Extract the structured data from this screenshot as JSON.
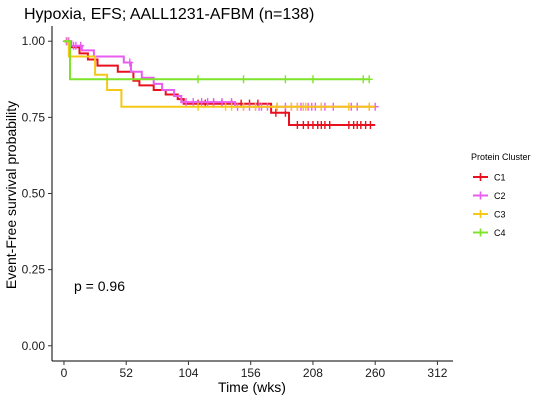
{
  "chart_data": {
    "type": "line",
    "subtype": "kaplan-meier",
    "title": "Hypoxia,  EFS; AALL1231-AFBM (n=138)",
    "xlabel": "Time (wks)",
    "ylabel": "Event-Free survival probability",
    "xlim": [
      -10,
      325
    ],
    "ylim": [
      -0.05,
      1.05
    ],
    "x_ticks": [
      0,
      52,
      104,
      156,
      208,
      260,
      312
    ],
    "x_tick_labels": [
      "0",
      "52",
      "104",
      "156",
      "208",
      "260",
      "312"
    ],
    "y_ticks": [
      0,
      0.25,
      0.5,
      0.75,
      1.0
    ],
    "y_tick_labels": [
      "0.00",
      "0.25",
      "0.50",
      "0.75",
      "1.00"
    ],
    "grid": false,
    "legend": {
      "title": "Protein Cluster",
      "position": "right"
    },
    "annotation": "p = 0.96",
    "series": [
      {
        "name": "C1",
        "color": "#e8101e",
        "steps": [
          [
            0,
            1.0
          ],
          [
            5,
            0.98
          ],
          [
            13,
            0.96
          ],
          [
            20,
            0.94
          ],
          [
            28,
            0.92
          ],
          [
            45,
            0.9
          ],
          [
            58,
            0.87
          ],
          [
            63,
            0.855
          ],
          [
            75,
            0.84
          ],
          [
            85,
            0.825
          ],
          [
            95,
            0.81
          ],
          [
            100,
            0.795
          ],
          [
            173,
            0.765
          ],
          [
            188,
            0.725
          ],
          [
            260,
            0.725
          ]
        ],
        "censor_x": [
          98,
          112,
          118,
          125,
          132,
          140,
          148,
          155,
          162,
          177,
          185,
          195,
          200,
          204,
          208,
          212,
          215,
          218,
          222,
          238,
          242,
          245,
          248,
          252,
          256
        ]
      },
      {
        "name": "C2",
        "color": "#e85cf0",
        "steps": [
          [
            0,
            1.0
          ],
          [
            6,
            0.985
          ],
          [
            15,
            0.97
          ],
          [
            25,
            0.95
          ],
          [
            50,
            0.93
          ],
          [
            56,
            0.9
          ],
          [
            65,
            0.88
          ],
          [
            75,
            0.86
          ],
          [
            82,
            0.84
          ],
          [
            92,
            0.82
          ],
          [
            98,
            0.8
          ],
          [
            143,
            0.785
          ],
          [
            260,
            0.785
          ]
        ],
        "censor_x": [
          2,
          4,
          8,
          10,
          14,
          55,
          102,
          108,
          115,
          120,
          125,
          132,
          140,
          145,
          150,
          155,
          160,
          163,
          165,
          170,
          178,
          185,
          190,
          195,
          198,
          200,
          204,
          207,
          210,
          215,
          218,
          225,
          240,
          245,
          255,
          260
        ]
      },
      {
        "name": "C3",
        "color": "#f5c818",
        "steps": [
          [
            0,
            1.0
          ],
          [
            4,
            0.95
          ],
          [
            26,
            0.89
          ],
          [
            36,
            0.84
          ],
          [
            48,
            0.785
          ],
          [
            260,
            0.785
          ]
        ],
        "censor_x": [
          3,
          112,
          135,
          140,
          150,
          160,
          178,
          190,
          195,
          200,
          202,
          215,
          238,
          255
        ]
      },
      {
        "name": "C4",
        "color": "#7ee42a",
        "steps": [
          [
            0,
            1.0
          ],
          [
            5,
            0.875
          ],
          [
            255,
            0.875
          ]
        ],
        "censor_x": [
          112,
          150,
          185,
          208,
          250,
          255
        ]
      }
    ]
  }
}
